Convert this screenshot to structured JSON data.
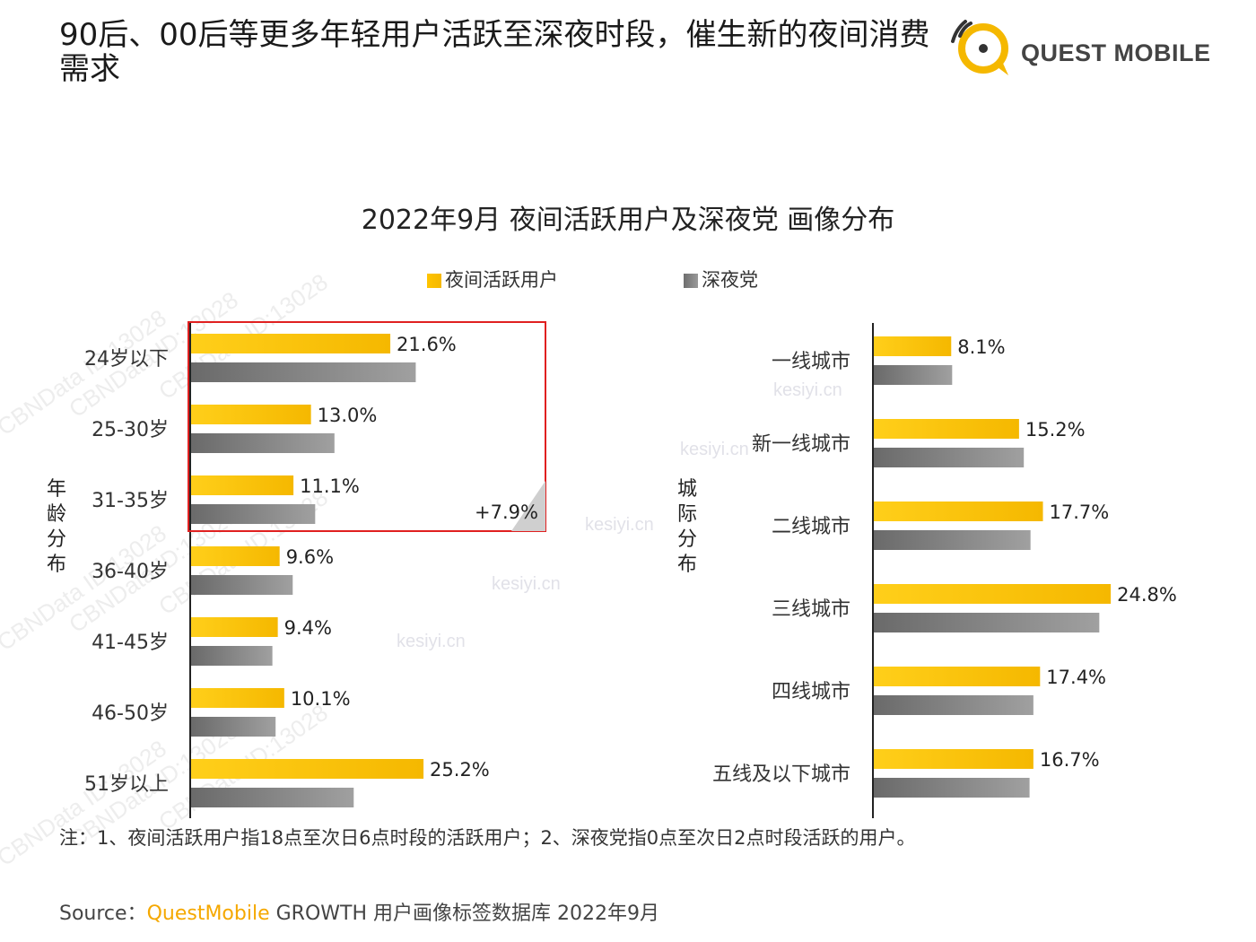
{
  "headline": "90后、00后等更多年轻用户活跃至深夜时段，催生新的夜间消费需求",
  "logo": {
    "text": "QUEST MOBILE"
  },
  "colors": {
    "primary": "#f5b800",
    "secondary": "#7f7f7f",
    "highlight_box": "#e02020"
  },
  "chart_data": {
    "type": "bar",
    "title": "2022年9月 夜间活跃用户及深夜党 画像分布",
    "legend": [
      "夜间活跃用户",
      "深夜党"
    ],
    "legend_position": "top",
    "panels": [
      {
        "label": "年龄分布",
        "orientation": "horizontal",
        "categories": [
          "24岁以下",
          "25-30岁",
          "31-35岁",
          "36-40岁",
          "41-45岁",
          "46-50岁",
          "51岁以上"
        ],
        "series": [
          {
            "name": "夜间活跃用户",
            "values": [
              21.6,
              13.0,
              11.1,
              9.6,
              9.4,
              10.1,
              25.2
            ]
          },
          {
            "name": "深夜党",
            "values": [
              21.0,
              13.4,
              11.6,
              9.5,
              7.6,
              7.9,
              15.2
            ]
          }
        ],
        "data_labels": [
          "21.6%",
          "13.0%",
          "11.1%",
          "9.6%",
          "9.4%",
          "10.1%",
          "25.2%"
        ],
        "annotation": "+7.9%",
        "xlim": [
          0,
          28
        ]
      },
      {
        "label": "城际分布",
        "orientation": "horizontal",
        "categories": [
          "一线城市",
          "新一线城市",
          "二线城市",
          "三线城市",
          "四线城市",
          "五线及以下城市"
        ],
        "series": [
          {
            "name": "夜间活跃用户",
            "values": [
              8.1,
              15.2,
              17.7,
              24.8,
              17.4,
              16.7
            ]
          },
          {
            "name": "深夜党",
            "values": [
              8.2,
              15.7,
              16.4,
              23.6,
              16.7,
              16.3
            ]
          }
        ],
        "data_labels": [
          "8.1%",
          "15.2%",
          "17.7%",
          "24.8%",
          "17.4%",
          "16.7%"
        ],
        "xlim": [
          0,
          28
        ]
      }
    ]
  },
  "footnote": "注：1、夜间活跃用户指18点至次日6点时段的活跃用户；2、深夜党指0点至次日2点时段活跃的用户。",
  "source": {
    "prefix": "Source：",
    "brand": "QuestMobile",
    "rest": " GROWTH 用户画像标签数据库 2022年9月"
  }
}
